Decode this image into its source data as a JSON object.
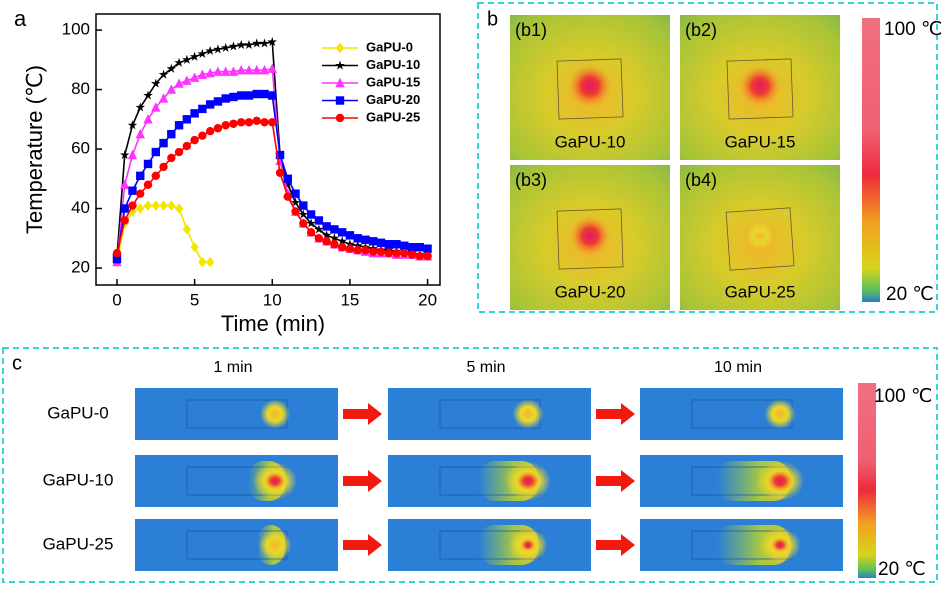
{
  "chart_data": {
    "type": "line",
    "panel_label": "a",
    "xlabel": "Time (min)",
    "ylabel": "Temperature (℃)",
    "x": [
      0,
      0.5,
      1,
      1.5,
      2,
      2.5,
      3,
      3.5,
      4,
      4.5,
      5,
      5.5,
      6,
      6.5,
      7,
      7.5,
      8,
      8.5,
      9,
      9.5,
      10,
      10.5,
      11,
      11.5,
      12,
      12.5,
      13,
      13.5,
      14,
      14.5,
      15,
      15.5,
      16,
      16.5,
      17,
      17.5,
      18,
      18.5,
      19,
      19.5,
      20
    ],
    "series": [
      {
        "name": "GaPU-0",
        "color": "#f2e600",
        "marker": "diamond",
        "values": [
          22,
          35,
          39,
          40,
          41,
          41,
          41,
          41,
          40,
          33,
          27,
          22,
          22,
          null,
          null,
          null,
          null,
          null,
          null,
          null,
          null,
          null,
          null,
          null,
          null,
          null,
          null,
          null,
          null,
          null,
          null,
          null,
          null,
          null,
          null,
          null,
          null,
          null,
          null,
          null,
          null
        ]
      },
      {
        "name": "GaPU-10",
        "color": "#000000",
        "marker": "star",
        "values": [
          24,
          58,
          68,
          74,
          78,
          82,
          85,
          87,
          89,
          90,
          91,
          92,
          93,
          93.5,
          94,
          94.5,
          95,
          95,
          95.5,
          95.5,
          96,
          58,
          48,
          42,
          38,
          35,
          33,
          31,
          30,
          29,
          28,
          27.5,
          27,
          26.5,
          26,
          26,
          25.5,
          25,
          25,
          24.5,
          24
        ]
      },
      {
        "name": "GaPU-15",
        "color": "#ff33ff",
        "marker": "triangle",
        "values": [
          22,
          48,
          58,
          65,
          70,
          74,
          77,
          80,
          82,
          83,
          84,
          85,
          85.5,
          86,
          86,
          86,
          86.5,
          86.5,
          86.5,
          86.5,
          87,
          56,
          45,
          39,
          35,
          32,
          30,
          29,
          28,
          27,
          26.5,
          26,
          25.5,
          25,
          25,
          25,
          24.5,
          24.5,
          24.5,
          24,
          24
        ]
      },
      {
        "name": "GaPU-20",
        "color": "#0000ff",
        "marker": "square",
        "values": [
          23,
          40,
          46,
          51,
          55,
          59,
          62,
          65,
          68,
          70,
          72,
          73.5,
          75,
          76,
          77,
          77.5,
          78,
          78,
          78.5,
          78.5,
          78,
          58,
          50,
          45,
          41,
          38,
          36,
          34,
          33,
          32,
          31,
          30,
          29.5,
          29,
          28.5,
          28,
          28,
          27.5,
          27,
          27,
          26.5
        ]
      },
      {
        "name": "GaPU-25",
        "color": "#ff0000",
        "marker": "circle",
        "values": [
          25,
          36,
          41,
          45,
          48,
          51,
          54,
          57,
          59,
          61,
          63,
          64.5,
          66,
          67,
          68,
          68.5,
          69,
          69,
          69.5,
          69,
          69,
          52,
          44,
          39,
          35,
          32,
          30,
          29,
          28,
          27,
          26.5,
          26,
          26,
          25.5,
          25.5,
          25,
          25,
          25,
          24.5,
          24,
          24
        ]
      }
    ],
    "xlim": [
      -1.35,
      20.8
    ],
    "xticks": [
      0,
      5,
      10,
      15,
      20
    ],
    "ylim": [
      14.3,
      105.4
    ],
    "yticks": [
      20,
      40,
      60,
      80,
      100
    ],
    "legend": "upper right"
  },
  "panel_b": {
    "label": "b",
    "images": [
      {
        "tag": "(b1)",
        "name": "GaPU-10"
      },
      {
        "tag": "(b2)",
        "name": "GaPU-15"
      },
      {
        "tag": "(b3)",
        "name": "GaPU-20"
      },
      {
        "tag": "(b4)",
        "name": "GaPU-25"
      }
    ],
    "colorbar": {
      "max": "100 ℃",
      "min": "20 ℃"
    }
  },
  "panel_c": {
    "label": "c",
    "times": [
      "1 min",
      "5 min",
      "10 min"
    ],
    "samples": [
      "GaPU-0",
      "GaPU-10",
      "GaPU-25"
    ],
    "colorbar": {
      "max": "100 ℃",
      "min": "20 ℃"
    }
  }
}
